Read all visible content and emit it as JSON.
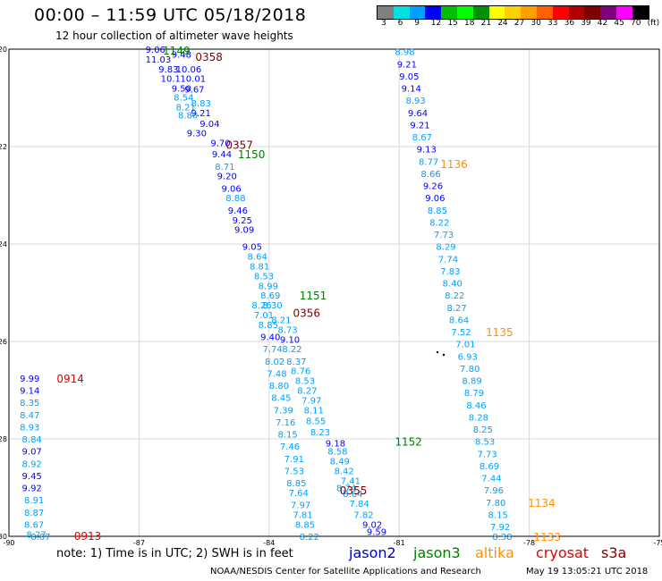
{
  "title": "00:00 – 11:59 UTC 05/18/2018",
  "subtitle": "12 hour collection of altimeter wave heights",
  "colorbar": {
    "colors": [
      "#808080",
      "#00e0e0",
      "#00a0ff",
      "#0000ff",
      "#00c000",
      "#00ff00",
      "#009000",
      "#ffff00",
      "#ffd000",
      "#ffa000",
      "#ff6000",
      "#ff0000",
      "#b00000",
      "#800000",
      "#800080",
      "#ff00ff",
      "#000000"
    ],
    "labels": [
      "3",
      "6",
      "9",
      "12",
      "15",
      "18",
      "21",
      "24",
      "27",
      "30",
      "33",
      "36",
      "39",
      "42",
      "45",
      "70",
      "(ft)"
    ]
  },
  "axes": {
    "x_ticks": [
      "-90",
      "-87",
      "-84",
      "-81",
      "-78",
      "-75"
    ],
    "y_ticks": [
      "-20",
      "-22",
      "-24",
      "-26",
      "-28",
      "-30"
    ]
  },
  "note": "note: 1) Time is in UTC; 2) SWH is in feet",
  "footer": "NOAA/NESDIS Center for Satellite Applications and Research",
  "footer_timestamp": "May 19 13:05:21 UTC 2018",
  "satellites": [
    {
      "name": "jason2",
      "color": "#0000c0"
    },
    {
      "name": "jason3",
      "color": "#008000"
    },
    {
      "name": "altika",
      "color": "#ff9000"
    },
    {
      "name": "cryosat",
      "color": "#e00000"
    },
    {
      "name": "s3a",
      "color": "#800000"
    }
  ],
  "pass_labels": [
    {
      "text": "1149",
      "lon": -86.45,
      "lat": -20.02,
      "color": "#008000"
    },
    {
      "text": "0358",
      "lon": -85.7,
      "lat": -20.15,
      "color": "#800000"
    },
    {
      "text": "0357",
      "lon": -85.0,
      "lat": -21.95,
      "color": "#800000"
    },
    {
      "text": "1150",
      "lon": -84.72,
      "lat": -22.15,
      "color": "#008000"
    },
    {
      "text": "1151",
      "lon": -83.3,
      "lat": -25.05,
      "color": "#008000"
    },
    {
      "text": "0356",
      "lon": -83.45,
      "lat": -25.4,
      "color": "#800000"
    },
    {
      "text": "1152",
      "lon": -81.1,
      "lat": -28.05,
      "color": "#008000"
    },
    {
      "text": "0355",
      "lon": -82.37,
      "lat": -29.05,
      "color": "#800000"
    },
    {
      "text": "1136",
      "lon": -80.05,
      "lat": -22.35,
      "color": "#ff9000"
    },
    {
      "text": "1135",
      "lon": -79.0,
      "lat": -25.8,
      "color": "#ff9000"
    },
    {
      "text": "1134",
      "lon": -78.03,
      "lat": -29.3,
      "color": "#ff9000"
    },
    {
      "text": "1133",
      "lon": -77.9,
      "lat": -30.0,
      "color": "#ff9000"
    },
    {
      "text": "0914",
      "lon": -88.9,
      "lat": -26.75,
      "color": "#e00000"
    },
    {
      "text": "0913",
      "lon": -88.5,
      "lat": -29.98,
      "color": "#e00000"
    }
  ],
  "observations": [
    {
      "v": "9.06",
      "lon": -86.85,
      "lat": -20.0
    },
    {
      "v": "11.03",
      "lon": -86.85,
      "lat": -20.2
    },
    {
      "v": "9.48",
      "lon": -86.25,
      "lat": -20.1
    },
    {
      "v": "9.83",
      "lon": -86.55,
      "lat": -20.4
    },
    {
      "v": "10.06",
      "lon": -86.15,
      "lat": -20.4
    },
    {
      "v": "10.1",
      "lon": -86.5,
      "lat": -20.6
    },
    {
      "v": "10.01",
      "lon": -86.05,
      "lat": -20.6
    },
    {
      "v": "9.50",
      "lon": -86.25,
      "lat": -20.8
    },
    {
      "v": "9.67",
      "lon": -85.95,
      "lat": -20.82
    },
    {
      "v": "8.54",
      "lon": -86.2,
      "lat": -20.98
    },
    {
      "v": "8.83",
      "lon": -85.8,
      "lat": -21.1
    },
    {
      "v": "8.21",
      "lon": -86.15,
      "lat": -21.18
    },
    {
      "v": "9.21",
      "lon": -85.8,
      "lat": -21.3
    },
    {
      "v": "8.80",
      "lon": -86.1,
      "lat": -21.35
    },
    {
      "v": "9.04",
      "lon": -85.6,
      "lat": -21.52
    },
    {
      "v": "9.30",
      "lon": -85.9,
      "lat": -21.72
    },
    {
      "v": "9.70",
      "lon": -85.35,
      "lat": -21.92
    },
    {
      "v": "9.44",
      "lon": -85.32,
      "lat": -22.15
    },
    {
      "v": "8.71",
      "lon": -85.25,
      "lat": -22.4
    },
    {
      "v": "9.20",
      "lon": -85.2,
      "lat": -22.6
    },
    {
      "v": "9.06",
      "lon": -85.1,
      "lat": -22.85
    },
    {
      "v": "8.88",
      "lon": -85.0,
      "lat": -23.05
    },
    {
      "v": "9.46",
      "lon": -84.95,
      "lat": -23.3
    },
    {
      "v": "9.25",
      "lon": -84.85,
      "lat": -23.5
    },
    {
      "v": "9.09",
      "lon": -84.8,
      "lat": -23.7
    },
    {
      "v": "9.05",
      "lon": -84.62,
      "lat": -24.05
    },
    {
      "v": "8.64",
      "lon": -84.5,
      "lat": -24.25
    },
    {
      "v": "8.81",
      "lon": -84.45,
      "lat": -24.45
    },
    {
      "v": "8.53",
      "lon": -84.35,
      "lat": -24.65
    },
    {
      "v": "8.99",
      "lon": -84.25,
      "lat": -24.85
    },
    {
      "v": "8.69",
      "lon": -84.2,
      "lat": -25.05
    },
    {
      "v": "8.30",
      "lon": -84.15,
      "lat": -25.25
    },
    {
      "v": "8.26",
      "lon": -84.4,
      "lat": -25.25
    },
    {
      "v": "7.01",
      "lon": -84.35,
      "lat": -25.45
    },
    {
      "v": "8.21",
      "lon": -83.95,
      "lat": -25.55
    },
    {
      "v": "8.85",
      "lon": -84.25,
      "lat": -25.65
    },
    {
      "v": "8.73",
      "lon": -83.8,
      "lat": -25.75
    },
    {
      "v": "9.40",
      "lon": -84.2,
      "lat": -25.9
    },
    {
      "v": "9.10",
      "lon": -83.75,
      "lat": -25.95
    },
    {
      "v": "7.74",
      "lon": -84.15,
      "lat": -26.15
    },
    {
      "v": "8.22",
      "lon": -83.7,
      "lat": -26.15
    },
    {
      "v": "8.02",
      "lon": -84.1,
      "lat": -26.4
    },
    {
      "v": "8.37",
      "lon": -83.6,
      "lat": -26.4
    },
    {
      "v": "7.48",
      "lon": -84.05,
      "lat": -26.65
    },
    {
      "v": "8.76",
      "lon": -83.5,
      "lat": -26.6
    },
    {
      "v": "8.80",
      "lon": -84.0,
      "lat": -26.9
    },
    {
      "v": "8.53",
      "lon": -83.4,
      "lat": -26.8
    },
    {
      "v": "8.45",
      "lon": -83.95,
      "lat": -27.15
    },
    {
      "v": "8.27",
      "lon": -83.35,
      "lat": -27.0
    },
    {
      "v": "7.39",
      "lon": -83.9,
      "lat": -27.4
    },
    {
      "v": "7.97",
      "lon": -83.25,
      "lat": -27.2
    },
    {
      "v": "7.16",
      "lon": -83.85,
      "lat": -27.65
    },
    {
      "v": "8.11",
      "lon": -83.2,
      "lat": -27.4
    },
    {
      "v": "8.15",
      "lon": -83.8,
      "lat": -27.9
    },
    {
      "v": "8.55",
      "lon": -83.15,
      "lat": -27.62
    },
    {
      "v": "8.23",
      "lon": -83.05,
      "lat": -27.85
    },
    {
      "v": "7.46",
      "lon": -83.75,
      "lat": -28.15
    },
    {
      "v": "9.18",
      "lon": -82.7,
      "lat": -28.08
    },
    {
      "v": "7.91",
      "lon": -83.65,
      "lat": -28.4
    },
    {
      "v": "8.58",
      "lon": -82.65,
      "lat": -28.25
    },
    {
      "v": "8.49",
      "lon": -82.6,
      "lat": -28.45
    },
    {
      "v": "7.53",
      "lon": -83.65,
      "lat": -28.65
    },
    {
      "v": "8.42",
      "lon": -82.5,
      "lat": -28.65
    },
    {
      "v": "8.85",
      "lon": -83.6,
      "lat": -28.9
    },
    {
      "v": "7.41",
      "lon": -82.35,
      "lat": -28.85
    },
    {
      "v": "8.74",
      "lon": -82.45,
      "lat": -29.0
    },
    {
      "v": "7.64",
      "lon": -83.55,
      "lat": -29.1
    },
    {
      "v": "8.64",
      "lon": -82.3,
      "lat": -29.12
    },
    {
      "v": "7.84",
      "lon": -82.15,
      "lat": -29.32
    },
    {
      "v": "7.97",
      "lon": -83.5,
      "lat": -29.35
    },
    {
      "v": "7.82",
      "lon": -82.05,
      "lat": -29.55
    },
    {
      "v": "7.81",
      "lon": -83.45,
      "lat": -29.55
    },
    {
      "v": "9.02",
      "lon": -81.85,
      "lat": -29.75
    },
    {
      "v": "8.85",
      "lon": -83.4,
      "lat": -29.75
    },
    {
      "v": "9.59",
      "lon": -81.75,
      "lat": -29.9
    },
    {
      "v": "8.22",
      "lon": -83.3,
      "lat": -30.0
    },
    {
      "v": "8.98",
      "lon": -81.1,
      "lat": -20.05
    },
    {
      "v": "9.21",
      "lon": -81.05,
      "lat": -20.3
    },
    {
      "v": "9.05",
      "lon": -81.0,
      "lat": -20.55
    },
    {
      "v": "9.14",
      "lon": -80.95,
      "lat": -20.8
    },
    {
      "v": "8.93",
      "lon": -80.85,
      "lat": -21.05
    },
    {
      "v": "9.64",
      "lon": -80.8,
      "lat": -21.3
    },
    {
      "v": "9.21",
      "lon": -80.75,
      "lat": -21.55
    },
    {
      "v": "8.67",
      "lon": -80.7,
      "lat": -21.8
    },
    {
      "v": "9.13",
      "lon": -80.6,
      "lat": -22.05
    },
    {
      "v": "8.77",
      "lon": -80.55,
      "lat": -22.3
    },
    {
      "v": "8.66",
      "lon": -80.5,
      "lat": -22.55
    },
    {
      "v": "9.26",
      "lon": -80.45,
      "lat": -22.8
    },
    {
      "v": "9.06",
      "lon": -80.4,
      "lat": -23.05
    },
    {
      "v": "8.85",
      "lon": -80.35,
      "lat": -23.3
    },
    {
      "v": "8.22",
      "lon": -80.3,
      "lat": -23.55
    },
    {
      "v": "7.73",
      "lon": -80.2,
      "lat": -23.8
    },
    {
      "v": "8.29",
      "lon": -80.15,
      "lat": -24.05
    },
    {
      "v": "7.74",
      "lon": -80.1,
      "lat": -24.3
    },
    {
      "v": "7.83",
      "lon": -80.05,
      "lat": -24.55
    },
    {
      "v": "8.40",
      "lon": -80.0,
      "lat": -24.8
    },
    {
      "v": "8.22",
      "lon": -79.95,
      "lat": -25.05
    },
    {
      "v": "8.27",
      "lon": -79.9,
      "lat": -25.3
    },
    {
      "v": "8.64",
      "lon": -79.85,
      "lat": -25.55
    },
    {
      "v": "7.52",
      "lon": -79.8,
      "lat": -25.8
    },
    {
      "v": "7.01",
      "lon": -79.7,
      "lat": -26.05
    },
    {
      "v": "6.93",
      "lon": -79.65,
      "lat": -26.3
    },
    {
      "v": "7.80",
      "lon": -79.6,
      "lat": -26.55
    },
    {
      "v": "8.89",
      "lon": -79.55,
      "lat": -26.8
    },
    {
      "v": "8.79",
      "lon": -79.5,
      "lat": -27.05
    },
    {
      "v": "8.46",
      "lon": -79.45,
      "lat": -27.3
    },
    {
      "v": "8.28",
      "lon": -79.4,
      "lat": -27.55
    },
    {
      "v": "8.25",
      "lon": -79.3,
      "lat": -27.8
    },
    {
      "v": "8.53",
      "lon": -79.25,
      "lat": -28.05
    },
    {
      "v": "7.73",
      "lon": -79.2,
      "lat": -28.3
    },
    {
      "v": "8.69",
      "lon": -79.15,
      "lat": -28.55
    },
    {
      "v": "7.44",
      "lon": -79.1,
      "lat": -28.8
    },
    {
      "v": "7.96",
      "lon": -79.05,
      "lat": -29.05
    },
    {
      "v": "7.80",
      "lon": -79.0,
      "lat": -29.3
    },
    {
      "v": "8.15",
      "lon": -78.95,
      "lat": -29.55
    },
    {
      "v": "7.92",
      "lon": -78.9,
      "lat": -29.8
    },
    {
      "v": "8.38",
      "lon": -78.85,
      "lat": -30.0
    },
    {
      "v": "9.99",
      "lon": -89.75,
      "lat": -26.75
    },
    {
      "v": "9.14",
      "lon": -89.75,
      "lat": -27.0
    },
    {
      "v": "8.35",
      "lon": -89.75,
      "lat": -27.25
    },
    {
      "v": "8.47",
      "lon": -89.75,
      "lat": -27.5
    },
    {
      "v": "8.93",
      "lon": -89.75,
      "lat": -27.75
    },
    {
      "v": "8.84",
      "lon": -89.7,
      "lat": -28.0
    },
    {
      "v": "9.07",
      "lon": -89.7,
      "lat": -28.25
    },
    {
      "v": "8.92",
      "lon": -89.7,
      "lat": -28.5
    },
    {
      "v": "9.45",
      "lon": -89.7,
      "lat": -28.75
    },
    {
      "v": "9.92",
      "lon": -89.7,
      "lat": -29.0
    },
    {
      "v": "8.91",
      "lon": -89.65,
      "lat": -29.25
    },
    {
      "v": "8.87",
      "lon": -89.65,
      "lat": -29.5
    },
    {
      "v": "8.67",
      "lon": -89.65,
      "lat": -29.75
    },
    {
      "v": "8.27",
      "lon": -89.6,
      "lat": -29.95
    },
    {
      "v": "8.67",
      "lon": -89.5,
      "lat": -30.0
    }
  ]
}
